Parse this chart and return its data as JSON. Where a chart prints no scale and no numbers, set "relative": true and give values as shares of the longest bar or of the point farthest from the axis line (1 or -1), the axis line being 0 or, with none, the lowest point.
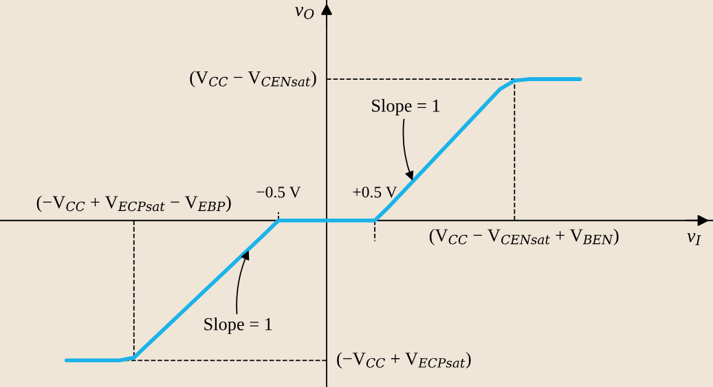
{
  "chart_data": {
    "type": "line",
    "relative": true,
    "xlabel": "v$_{I}$",
    "ylabel": "v$_{O}$",
    "x": [
      -2.7,
      -2.15,
      -2.0,
      -0.65,
      -0.5,
      -0.4,
      0.4,
      0.5,
      0.65,
      1.8,
      1.95,
      2.1,
      2.63
    ],
    "series": [
      {
        "color": "#1ab3ea",
        "values": [
          -0.99,
          -0.99,
          -0.97,
          -0.1,
          0,
          0,
          0,
          0,
          0.1,
          0.93,
          0.99,
          1,
          1
        ]
      }
    ],
    "xlim": [
      -3.39,
      4.01
    ],
    "xticks": [
      {
        "value": -0.5,
        "label": "−0.5 V"
      },
      {
        "value": 0.5,
        "label": "+0.5 V"
      }
    ],
    "ref_lines": [
      {
        "axis": "y",
        "value": 1,
        "label": "(V$_{CC}$ − V$_{CENsat}$)",
        "line_style": "dashed",
        "color": "#000000"
      },
      {
        "axis": "x",
        "value": 1.95,
        "label": "(V$_{CC}$ − V$_{CENsat}$ + V$_{BEN}$)",
        "line_style": "dashed",
        "color": "#000000"
      },
      {
        "axis": "y",
        "value": -0.99,
        "label": "(−V$_{CC}$ + V$_{ECPsat}$)",
        "line_style": "dashed",
        "color": "#000000"
      },
      {
        "axis": "x",
        "value": -2.0,
        "label": "(−V$_{CC}$ + V$_{ECPsat}$ − V$_{EBP}$)",
        "line_style": "dashed",
        "color": "#000000"
      }
    ],
    "annotations": [
      {
        "text": "Slope = 1",
        "x": 0.9,
        "y": 0.27
      },
      {
        "text": "Slope = 1",
        "x": -0.8,
        "y": -0.2
      }
    ],
    "grid": false,
    "legend": false,
    "marker": "none",
    "line_style": "solid"
  }
}
